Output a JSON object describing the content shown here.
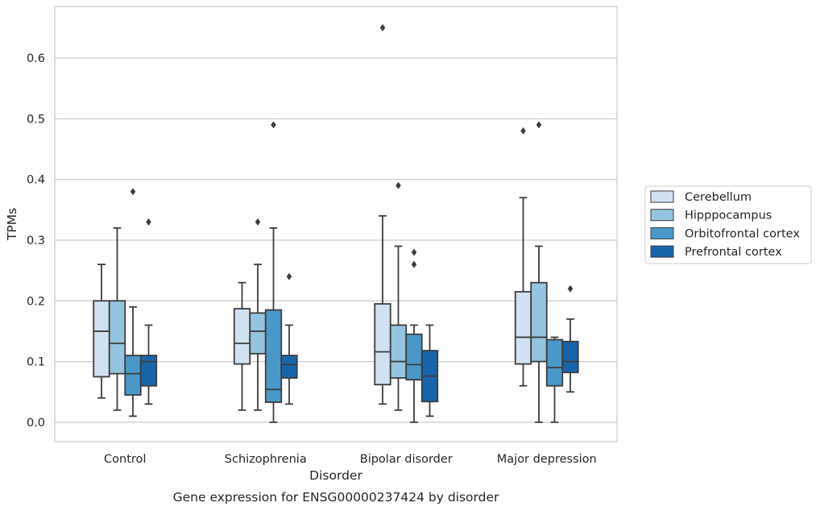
{
  "chart_data": {
    "type": "box",
    "title": "Gene expression for ENSG00000237424 by disorder",
    "xlabel": "Disorder",
    "ylabel": "TPMs",
    "ylim": [
      -0.032,
      0.685
    ],
    "yticks": [
      0.0,
      0.1,
      0.2,
      0.3,
      0.4,
      0.5,
      0.6
    ],
    "ytick_labels": [
      "0.0",
      "0.1",
      "0.2",
      "0.3",
      "0.4",
      "0.5",
      "0.6"
    ],
    "grid": "horizontal",
    "legend_placement": "right",
    "categories": [
      "Control",
      "Schizophrenia",
      "Bipolar disorder",
      "Major depression"
    ],
    "series": [
      {
        "name": "Cerebellum",
        "color": "#d0e1f2",
        "boxes": [
          {
            "whisker_low": 0.04,
            "q1": 0.075,
            "median": 0.15,
            "q3": 0.2,
            "whisker_high": 0.26,
            "outliers": []
          },
          {
            "whisker_low": 0.02,
            "q1": 0.096,
            "median": 0.13,
            "q3": 0.187,
            "whisker_high": 0.23,
            "outliers": []
          },
          {
            "whisker_low": 0.03,
            "q1": 0.062,
            "median": 0.116,
            "q3": 0.195,
            "whisker_high": 0.34,
            "outliers": [
              0.65
            ]
          },
          {
            "whisker_low": 0.06,
            "q1": 0.096,
            "median": 0.14,
            "q3": 0.215,
            "whisker_high": 0.37,
            "outliers": [
              0.48
            ]
          }
        ]
      },
      {
        "name": "Hipppocampus",
        "color": "#94c4df",
        "boxes": [
          {
            "whisker_low": 0.02,
            "q1": 0.08,
            "median": 0.13,
            "q3": 0.2,
            "whisker_high": 0.32,
            "outliers": []
          },
          {
            "whisker_low": 0.02,
            "q1": 0.113,
            "median": 0.15,
            "q3": 0.18,
            "whisker_high": 0.26,
            "outliers": [
              0.33
            ]
          },
          {
            "whisker_low": 0.02,
            "q1": 0.073,
            "median": 0.1,
            "q3": 0.16,
            "whisker_high": 0.29,
            "outliers": [
              0.39
            ]
          },
          {
            "whisker_low": 0.0,
            "q1": 0.1,
            "median": 0.14,
            "q3": 0.23,
            "whisker_high": 0.29,
            "outliers": [
              0.49
            ]
          }
        ]
      },
      {
        "name": "Orbitofrontal cortex",
        "color": "#4a98c9",
        "boxes": [
          {
            "whisker_low": 0.01,
            "q1": 0.045,
            "median": 0.08,
            "q3": 0.11,
            "whisker_high": 0.19,
            "outliers": [
              0.38
            ]
          },
          {
            "whisker_low": 0.0,
            "q1": 0.033,
            "median": 0.054,
            "q3": 0.185,
            "whisker_high": 0.32,
            "outliers": [
              0.49
            ]
          },
          {
            "whisker_low": 0.0,
            "q1": 0.07,
            "median": 0.095,
            "q3": 0.145,
            "whisker_high": 0.16,
            "outliers": [
              0.26,
              0.28
            ]
          },
          {
            "whisker_low": 0.0,
            "q1": 0.06,
            "median": 0.09,
            "q3": 0.136,
            "whisker_high": 0.14,
            "outliers": []
          }
        ]
      },
      {
        "name": "Prefrontal cortex",
        "color": "#1764ab",
        "boxes": [
          {
            "whisker_low": 0.03,
            "q1": 0.06,
            "median": 0.1,
            "q3": 0.11,
            "whisker_high": 0.16,
            "outliers": [
              0.33
            ]
          },
          {
            "whisker_low": 0.03,
            "q1": 0.073,
            "median": 0.095,
            "q3": 0.11,
            "whisker_high": 0.16,
            "outliers": [
              0.24
            ]
          },
          {
            "whisker_low": 0.01,
            "q1": 0.034,
            "median": 0.076,
            "q3": 0.118,
            "whisker_high": 0.16,
            "outliers": []
          },
          {
            "whisker_low": 0.05,
            "q1": 0.082,
            "median": 0.1,
            "q3": 0.133,
            "whisker_high": 0.17,
            "outliers": [
              0.22
            ]
          }
        ]
      }
    ]
  }
}
